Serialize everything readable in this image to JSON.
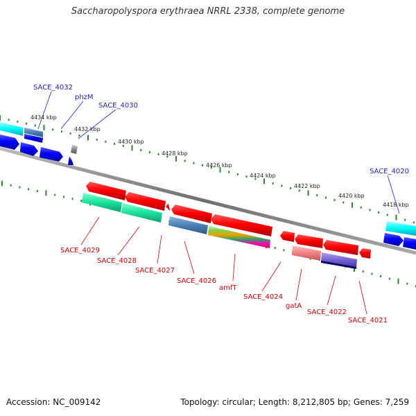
{
  "title": "Saccharopolyspora erythraea NRRL 2338, complete genome",
  "footer": {
    "accession": "Accession: NC_009142",
    "summary": "Topology: circular; Length: 8,212,805 bp; Genes: 7,259"
  },
  "colors": {
    "forward_label": "#1f1fcc",
    "reverse_label": "#d40000",
    "ticks": "#2a8a2a",
    "backbone": "#888888"
  },
  "scale_labels": [
    "4434 kbp",
    "4432 kbp",
    "4430 kbp",
    "4428 kbp",
    "4426 kbp",
    "4424 kbp",
    "4422 kbp",
    "4420 kbp",
    "4418 kbp"
  ],
  "forward_gene_labels": [
    "SACE_4032",
    "phzM",
    "SACE_4030",
    "SACE_4020"
  ],
  "reverse_gene_labels": [
    "SACE_4029",
    "SACE_4028",
    "SACE_4027",
    "SACE_4026",
    "amfT",
    "SACE_4024",
    "gatA",
    "SACE_4022",
    "SACE_4021"
  ]
}
